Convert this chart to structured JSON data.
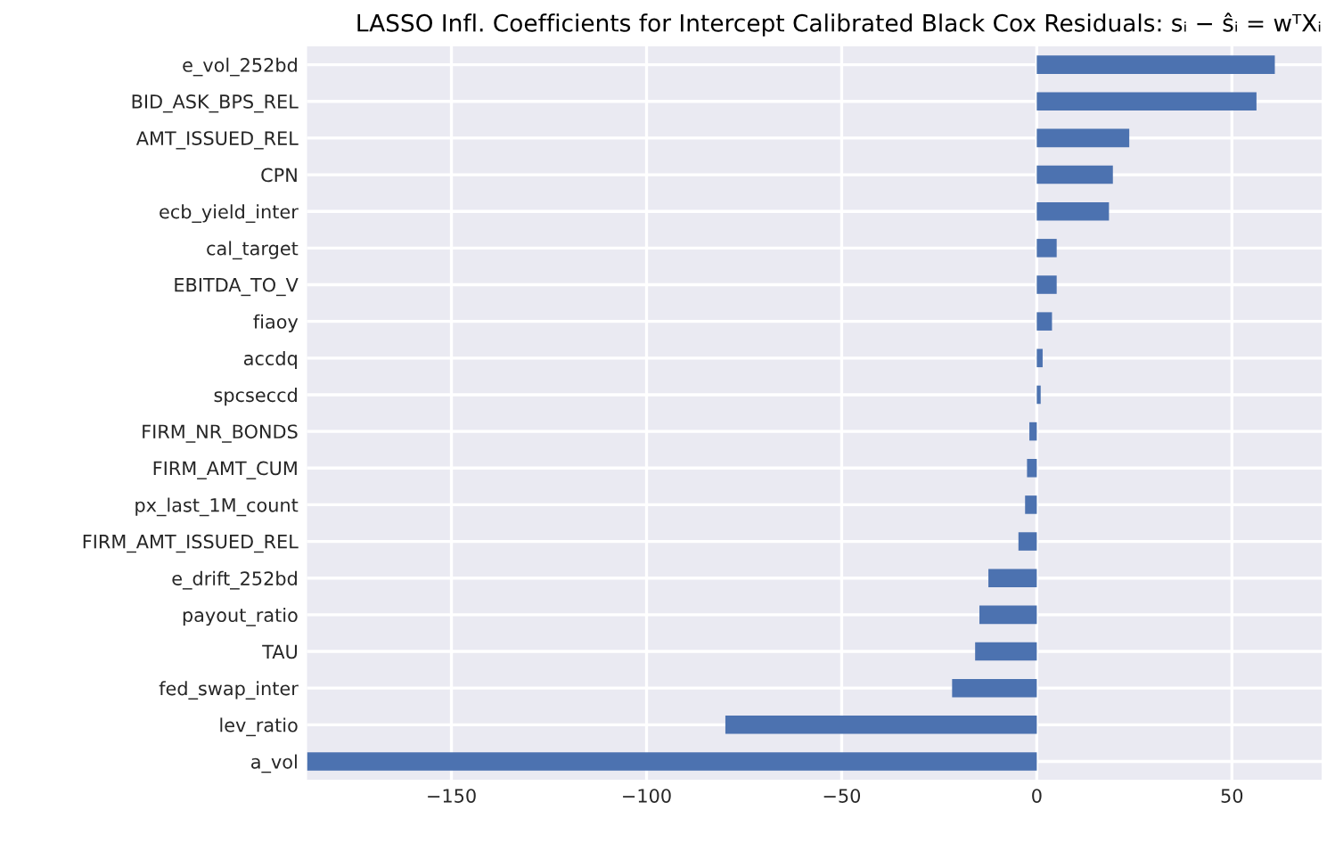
{
  "chart_data": {
    "type": "bar",
    "orientation": "horizontal",
    "title": "LASSO Infl. Coefficients for Intercept Calibrated Black Cox Residuals: sᵢ − ŝᵢ = wᵀXᵢ",
    "categories": [
      "e_vol_252bd",
      "BID_ASK_BPS_REL",
      "AMT_ISSUED_REL",
      "CPN",
      "ecb_yield_inter",
      "cal_target",
      "EBITDA_TO_V",
      "fiaoy",
      "accdq",
      "spcseccd",
      "FIRM_NR_BONDS",
      "FIRM_AMT_CUM",
      "px_last_1M_count",
      "FIRM_AMT_ISSUED_REL",
      "e_drift_252bd",
      "payout_ratio",
      "TAU",
      "fed_swap_inter",
      "lev_ratio",
      "a_vol"
    ],
    "values": [
      61,
      56.3,
      23.7,
      19.5,
      18.5,
      5.1,
      5.1,
      3.9,
      1.5,
      1.0,
      -1.9,
      -2.5,
      -3,
      -4.7,
      -12.4,
      -14.7,
      -15.8,
      -21.7,
      -79.8,
      -187
    ],
    "color": "#4c72b0",
    "xlim": [
      -187,
      73
    ],
    "xticks": [
      {
        "value": -150,
        "label": "−150"
      },
      {
        "value": -100,
        "label": "−100"
      },
      {
        "value": -50,
        "label": "−50"
      },
      0,
      50
    ],
    "grid": true
  }
}
